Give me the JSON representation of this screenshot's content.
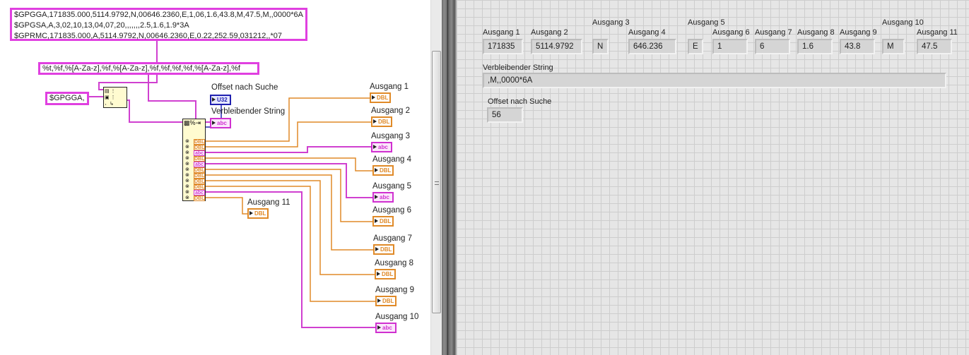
{
  "diagram": {
    "string_constant": [
      "$GPGGA,171835.000,5114.9792,N,00646.2360,E,1,06,1.6,43.8,M,47.5,M,,0000*6A",
      "$GPGSA,A,3,02,10,13,04,07,20,,,,,,,2.5,1.6,1.9*3A",
      "$GPRMC,171835.000,A,5114.9792,N,00646.2360,E,0.22,252.59,031212,,*07"
    ],
    "format_string": "%t,%f,%[A-Za-z],%f,%[A-Za-z],%f,%f,%f,%f,%[A-Za-z],%f",
    "search_constant": "$GPGGA,",
    "offset_indicator": {
      "label": "Offset nach Suche",
      "type": "U32"
    },
    "remaining_indicator": {
      "label": "Verbleibender String",
      "type": "abc"
    },
    "scan_outputs": [
      "DBL",
      "DBL",
      "abc",
      "DBL",
      "abc",
      "DBL",
      "DBL",
      "DBL",
      "DBL",
      "abc",
      "DBL"
    ],
    "outputs": [
      {
        "label": "Ausgang 1",
        "type": "DBL"
      },
      {
        "label": "Ausgang 2",
        "type": "DBL"
      },
      {
        "label": "Ausgang 3",
        "type": "abc"
      },
      {
        "label": "Ausgang 4",
        "type": "DBL"
      },
      {
        "label": "Ausgang 5",
        "type": "abc"
      },
      {
        "label": "Ausgang 6",
        "type": "DBL"
      },
      {
        "label": "Ausgang 7",
        "type": "DBL"
      },
      {
        "label": "Ausgang 8",
        "type": "DBL"
      },
      {
        "label": "Ausgang 9",
        "type": "DBL"
      },
      {
        "label": "Ausgang 10",
        "type": "abc"
      },
      {
        "label": "Ausgang 11",
        "type": "DBL"
      }
    ]
  },
  "panel": {
    "outputs": [
      {
        "label": "Ausgang 1",
        "value": "171835"
      },
      {
        "label": "Ausgang 2",
        "value": "5114.9792"
      },
      {
        "label": "Ausgang 3",
        "value": "N"
      },
      {
        "label": "Ausgang 4",
        "value": "646.236"
      },
      {
        "label": "Ausgang 5",
        "value": "E"
      },
      {
        "label": "Ausgang 6",
        "value": "1"
      },
      {
        "label": "Ausgang 7",
        "value": "6"
      },
      {
        "label": "Ausgang 8",
        "value": "1.6"
      },
      {
        "label": "Ausgang 9",
        "value": "43.8"
      },
      {
        "label": "Ausgang 10",
        "value": "M"
      },
      {
        "label": "Ausgang 11",
        "value": "47.5"
      }
    ],
    "remaining": {
      "label": "Verbleibender String",
      "value": ",M,,0000*6A"
    },
    "offset": {
      "label": "Offset nach Suche",
      "value": "56"
    }
  },
  "colors": {
    "string_wire": "#d040d0",
    "numeric_wire": "#e08a28",
    "integer_wire": "#2020b0"
  }
}
